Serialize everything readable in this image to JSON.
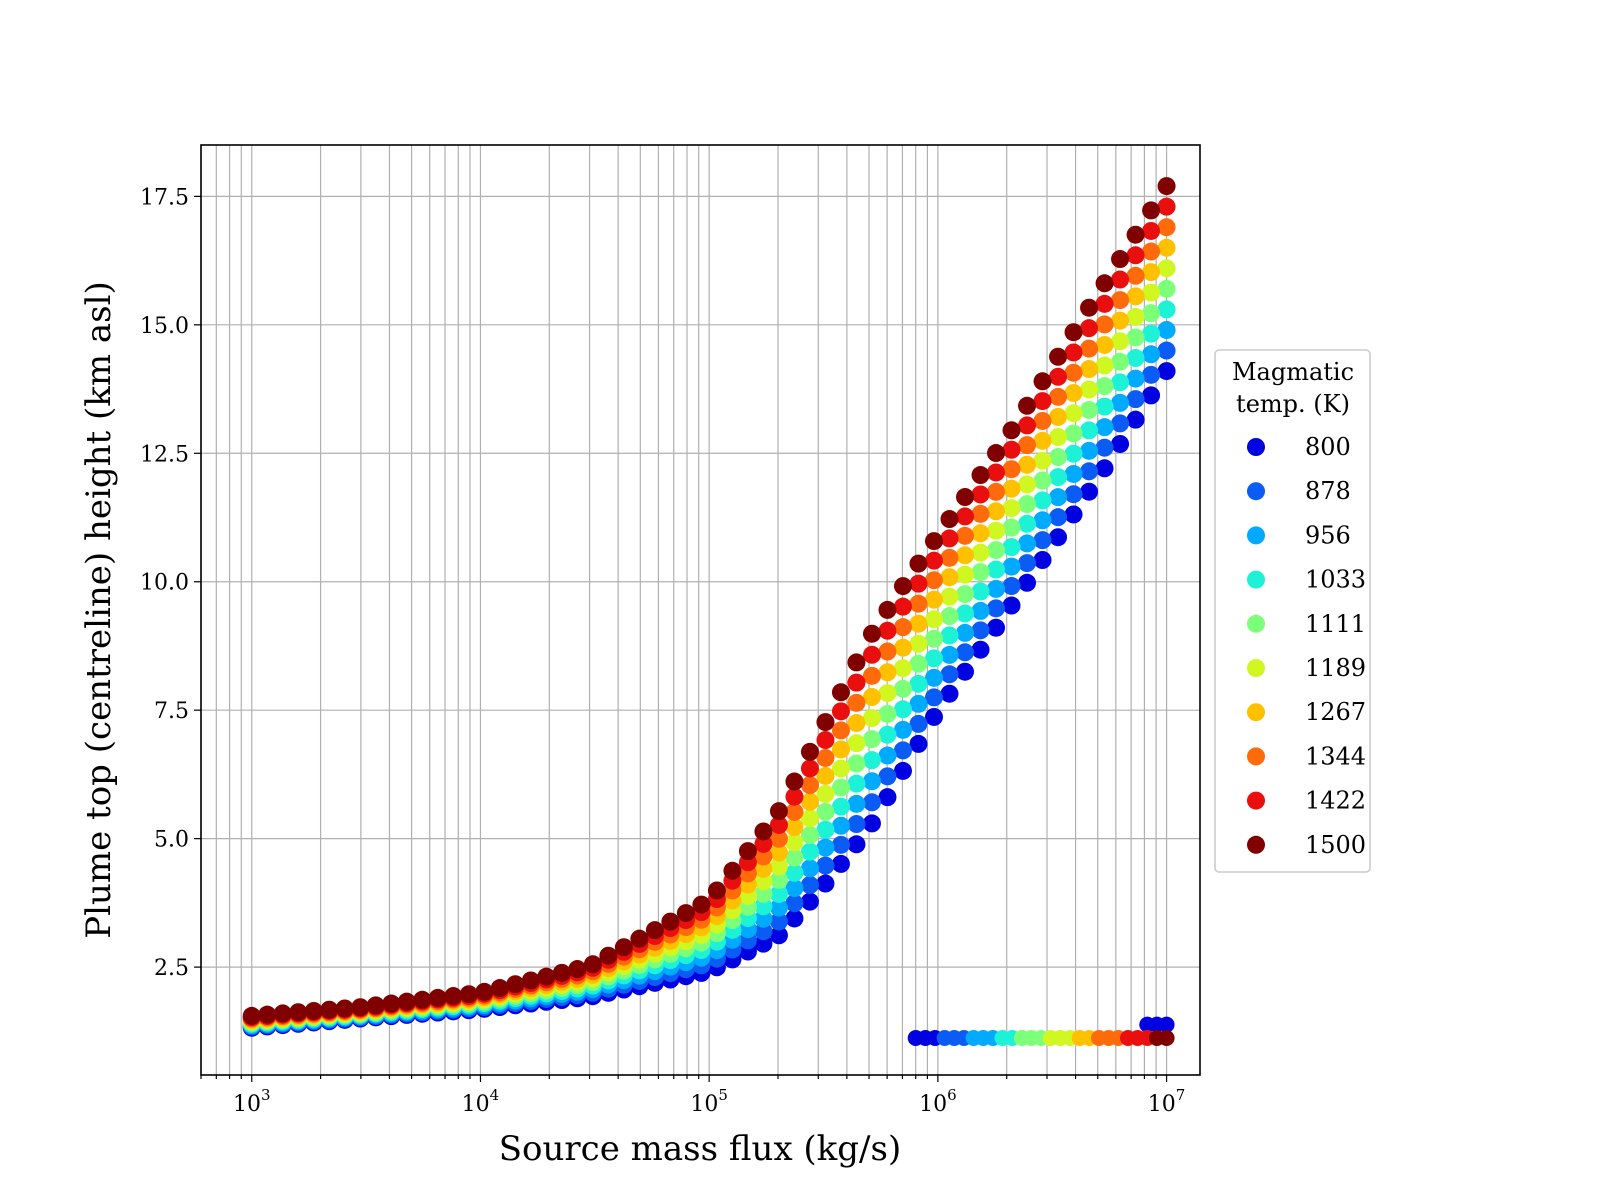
{
  "chart_data": {
    "type": "scatter",
    "xlabel": "Source mass flux (kg/s)",
    "ylabel": "Plume top (centreline) height (km asl)",
    "xscale": "log",
    "xlim": [
      600,
      14000000
    ],
    "ylim": [
      0.4,
      18.5
    ],
    "x_ticks": [
      {
        "value": 1000,
        "base": "10",
        "exp": "3"
      },
      {
        "value": 10000,
        "base": "10",
        "exp": "4"
      },
      {
        "value": 100000,
        "base": "10",
        "exp": "5"
      },
      {
        "value": 1000000,
        "base": "10",
        "exp": "6"
      },
      {
        "value": 10000000,
        "base": "10",
        "exp": "7"
      }
    ],
    "y_ticks": [
      {
        "value": 2.5,
        "label": "2.5"
      },
      {
        "value": 5.0,
        "label": "5.0"
      },
      {
        "value": 7.5,
        "label": "7.5"
      },
      {
        "value": 10.0,
        "label": "10.0"
      },
      {
        "value": 12.5,
        "label": "12.5"
      },
      {
        "value": 15.0,
        "label": "15.0"
      },
      {
        "value": 17.5,
        "label": "17.5"
      }
    ],
    "grid": true,
    "legend": {
      "title_lines": [
        "Magmatic",
        "temp. (K)"
      ],
      "placement": "outside-right",
      "entries": [
        {
          "label": "800",
          "color": "#0000e0"
        },
        {
          "label": "878",
          "color": "#0a5cf5"
        },
        {
          "label": "956",
          "color": "#00aaff"
        },
        {
          "label": "1033",
          "color": "#1ef2d6"
        },
        {
          "label": "1111",
          "color": "#7cff79"
        },
        {
          "label": "1189",
          "color": "#d0f722"
        },
        {
          "label": "1267",
          "color": "#ffc000"
        },
        {
          "label": "1344",
          "color": "#ff6b0a"
        },
        {
          "label": "1422",
          "color": "#ea0f0f"
        },
        {
          "label": "1500",
          "color": "#800000"
        }
      ]
    },
    "curve_x_range": [
      1000,
      10000000
    ],
    "curve_points_per_series": 60,
    "series": [
      {
        "temperature": 800,
        "color": "#0000e0",
        "x": [
          1000,
          3000,
          10000,
          30000,
          100000,
          200000,
          300000,
          500000,
          700000,
          1000000,
          2000000,
          5000000,
          10000000
        ],
        "y": [
          1.32,
          1.5,
          1.68,
          1.92,
          2.42,
          3.1,
          3.95,
          5.2,
          6.3,
          7.5,
          9.4,
          12.0,
          14.1
        ]
      },
      {
        "temperature": 1500,
        "color": "#800000",
        "x": [
          1000,
          3000,
          10000,
          30000,
          100000,
          200000,
          300000,
          500000,
          700000,
          1000000,
          2000000,
          5000000,
          10000000
        ],
        "y": [
          1.55,
          1.72,
          2.0,
          2.52,
          3.8,
          5.5,
          7.0,
          8.9,
          9.9,
          10.9,
          12.8,
          15.6,
          17.7
        ]
      }
    ],
    "low_branch": {
      "x_range": [
        800000,
        10000000
      ],
      "points": 27,
      "y": 1.12,
      "upper_x_start": 7500000,
      "upper_y": 1.38
    }
  }
}
